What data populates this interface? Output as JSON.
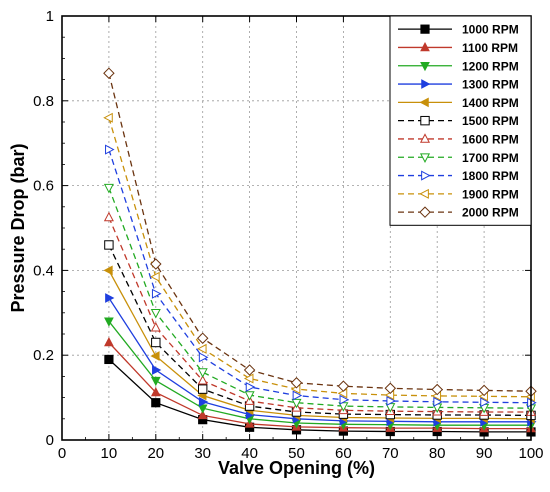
{
  "chart_data": {
    "type": "line",
    "xlabel": "Valve Opening (%)",
    "ylabel": "Pressure Drop (bar)",
    "xlim": [
      0,
      100
    ],
    "ylim": [
      0,
      1
    ],
    "xticks": [
      0,
      10,
      20,
      30,
      40,
      50,
      60,
      70,
      80,
      90,
      100
    ],
    "yticks": [
      0,
      0.2,
      0.4,
      0.6,
      0.8,
      1
    ],
    "ytick_labels": [
      "0",
      "0.2",
      "0.4",
      "0.6",
      "0.8",
      "1"
    ],
    "grid": true,
    "legend_position": "top-right",
    "x": [
      10,
      20,
      30,
      40,
      50,
      60,
      70,
      80,
      90,
      100
    ],
    "series": [
      {
        "name": "1000 RPM",
        "color": "#000000",
        "marker": "filled-square",
        "dash": "solid",
        "values": [
          0.19,
          0.088,
          0.048,
          0.03,
          0.024,
          0.021,
          0.02,
          0.02,
          0.019,
          0.019
        ]
      },
      {
        "name": "1100 RPM",
        "color": "#c0392b",
        "marker": "filled-triangle-up",
        "dash": "solid",
        "values": [
          0.23,
          0.112,
          0.058,
          0.038,
          0.031,
          0.029,
          0.028,
          0.028,
          0.027,
          0.027
        ]
      },
      {
        "name": "1200 RPM",
        "color": "#22aa22",
        "marker": "filled-triangle-down",
        "dash": "solid",
        "values": [
          0.28,
          0.14,
          0.075,
          0.05,
          0.04,
          0.037,
          0.036,
          0.035,
          0.035,
          0.035
        ]
      },
      {
        "name": "1300 RPM",
        "color": "#1f3fdf",
        "marker": "filled-triangle-right",
        "dash": "solid",
        "values": [
          0.335,
          0.165,
          0.09,
          0.06,
          0.05,
          0.045,
          0.044,
          0.043,
          0.043,
          0.043
        ]
      },
      {
        "name": "1400 RPM",
        "color": "#c8900a",
        "marker": "filled-triangle-left",
        "dash": "solid",
        "values": [
          0.4,
          0.198,
          0.105,
          0.07,
          0.058,
          0.053,
          0.052,
          0.051,
          0.051,
          0.05
        ]
      },
      {
        "name": "1500 RPM",
        "color": "#000000",
        "marker": "open-square",
        "dash": "dashed",
        "values": [
          0.46,
          0.23,
          0.12,
          0.08,
          0.066,
          0.061,
          0.06,
          0.059,
          0.059,
          0.058
        ]
      },
      {
        "name": "1600 RPM",
        "color": "#c0392b",
        "marker": "open-triangle-up",
        "dash": "dashed",
        "values": [
          0.525,
          0.265,
          0.14,
          0.092,
          0.076,
          0.07,
          0.068,
          0.067,
          0.066,
          0.066
        ]
      },
      {
        "name": "1700 RPM",
        "color": "#22aa22",
        "marker": "open-triangle-down",
        "dash": "dashed",
        "values": [
          0.595,
          0.3,
          0.16,
          0.106,
          0.088,
          0.08,
          0.078,
          0.077,
          0.076,
          0.075
        ]
      },
      {
        "name": "1800 RPM",
        "color": "#1f3fdf",
        "marker": "open-triangle-right",
        "dash": "dashed",
        "values": [
          0.685,
          0.345,
          0.195,
          0.125,
          0.105,
          0.095,
          0.092,
          0.09,
          0.089,
          0.088
        ]
      },
      {
        "name": "1900 RPM",
        "color": "#c8900a",
        "marker": "open-triangle-left",
        "dash": "dashed",
        "values": [
          0.76,
          0.385,
          0.215,
          0.145,
          0.12,
          0.11,
          0.106,
          0.104,
          0.103,
          0.102
        ]
      },
      {
        "name": "2000 RPM",
        "color": "#6b3410",
        "marker": "open-diamond",
        "dash": "dashed",
        "values": [
          0.865,
          0.415,
          0.24,
          0.165,
          0.135,
          0.127,
          0.122,
          0.119,
          0.117,
          0.115
        ]
      }
    ]
  }
}
